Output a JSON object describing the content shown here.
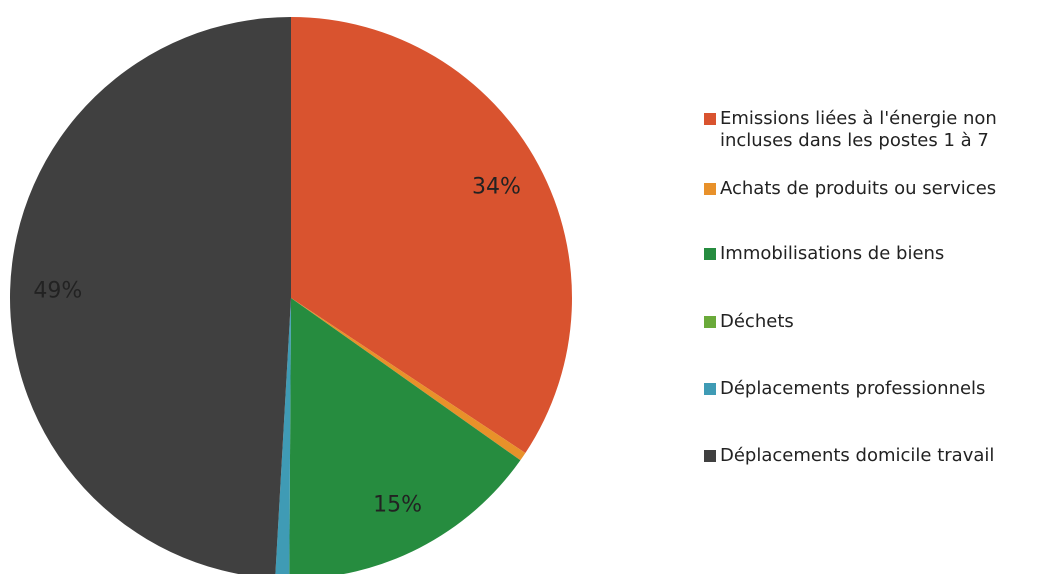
{
  "chart_data": {
    "type": "pie",
    "categories": [
      "Emissions liées à l'énergie non incluses dans les postes 1 à 7",
      "Achats de produits ou services",
      "Immobilisations de biens",
      "Déchets",
      "Déplacements professionnels",
      "Déplacements domicile travail"
    ],
    "values": [
      34.3,
      0.5,
      15.3,
      0,
      0.8,
      49.1
    ],
    "value_labels": [
      "34%",
      null,
      "15%",
      null,
      null,
      "49%"
    ],
    "colors": [
      "#d9532f",
      "#e8912a",
      "#268c3f",
      "#6aaa3a",
      "#3f9bb5",
      "#404040"
    ],
    "legend": "right"
  }
}
